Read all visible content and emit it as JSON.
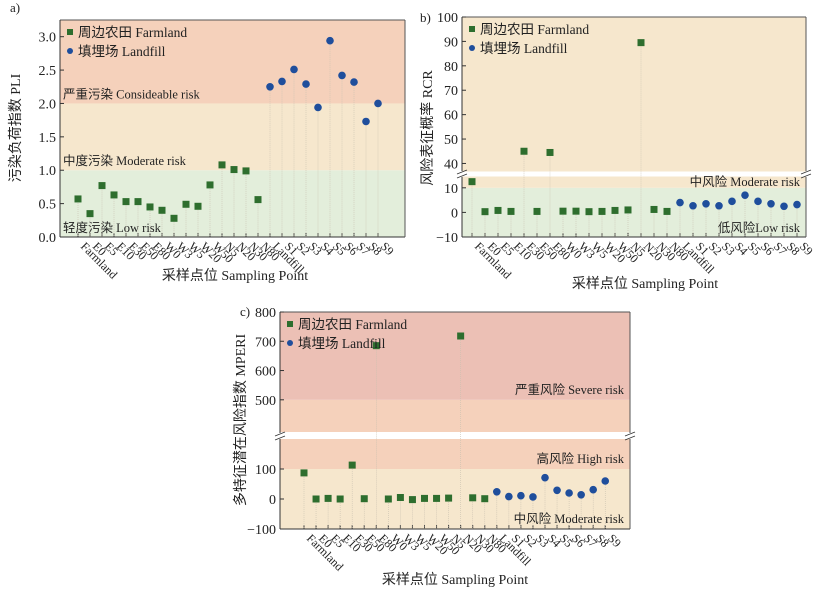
{
  "chart_data": [
    {
      "id": "a",
      "panel_label": "a)",
      "type": "scatter",
      "ylabel": "污染负荷指数 PLI",
      "xlabel": "采样点位 Sampling Point",
      "ylim": [
        0,
        3.25
      ],
      "yticks": [
        0.0,
        0.5,
        1.0,
        1.5,
        2.0,
        2.5,
        3.0
      ],
      "ytick_labels": [
        "0.0",
        "0.5",
        "1.0",
        "1.5",
        "2.0",
        "2.5",
        "3.0"
      ],
      "categories": [
        "Farmland",
        "E0",
        "E5",
        "E10",
        "E30",
        "E50",
        "E80",
        "W0",
        "W3",
        "W5",
        "W20",
        "W50",
        "N5",
        "N20",
        "N30",
        "N80",
        "Landfill",
        "S1",
        "S2",
        "S3",
        "S4",
        "S5",
        "S6",
        "S7",
        "S8",
        "S9"
      ],
      "bands": [
        {
          "from": 0,
          "to": 1.0,
          "label": "轻度污染 Low risk",
          "color": "#e3eedb"
        },
        {
          "from": 1.0,
          "to": 2.0,
          "label": "中度污染 Moderate risk",
          "color": "#f6e7cd"
        },
        {
          "from": 2.0,
          "to": 3.25,
          "label": "严重污染 Consideable risk",
          "color": "#f5d1bb"
        }
      ],
      "legend": [
        {
          "label": "周边农田 Farmland",
          "marker": "square",
          "color": "#2e6e2e"
        },
        {
          "label": "填埋场 Landfill",
          "marker": "circle",
          "color": "#1f4e9c"
        }
      ],
      "legend_position": "top-left",
      "series": [
        {
          "name": "周边农田 Farmland",
          "marker": "square",
          "color": "#2e6e2e",
          "start_index": 0,
          "values": [
            0.57,
            0.35,
            0.77,
            0.63,
            0.53,
            0.53,
            0.45,
            0.4,
            0.28,
            0.49,
            0.46,
            0.78,
            1.08,
            1.01,
            0.99,
            0.56
          ]
        },
        {
          "name": "填埋场 Landfill",
          "marker": "circle",
          "color": "#1f4e9c",
          "start_index": 16,
          "values": [
            2.25,
            2.33,
            2.51,
            2.29,
            1.94,
            2.94,
            2.42,
            2.32,
            1.73,
            2.0
          ]
        }
      ]
    },
    {
      "id": "b",
      "panel_label": "b)",
      "type": "scatter",
      "ylabel": "风险表征概率 RCR",
      "xlabel": "采样点位 Sampling Point",
      "broken_axis": true,
      "ylim_lower": [
        -10,
        14
      ],
      "ylim_upper": [
        36,
        100
      ],
      "yticks_lower": [
        -10,
        0,
        10
      ],
      "yticks_upper": [
        40,
        50,
        60,
        70,
        80,
        90,
        100
      ],
      "categories": [
        "Farmland",
        "E0",
        "E5",
        "E10",
        "E30",
        "E50",
        "E80",
        "W0",
        "W3",
        "W5",
        "W20",
        "W50",
        "N5",
        "N20",
        "N30",
        "N80",
        "Landfill",
        "S1",
        "S2",
        "S3",
        "S4",
        "S5",
        "S6",
        "S7",
        "S8",
        "S9"
      ],
      "bands": [
        {
          "from": -10,
          "to": 10,
          "label": "低风险Low risk",
          "color": "#e3eedb"
        },
        {
          "from": 10,
          "to": 100,
          "label": "中风险 Moderate risk",
          "color": "#f6e7cd"
        }
      ],
      "legend": [
        {
          "label": "周边农田 Farmland",
          "marker": "square",
          "color": "#2e6e2e"
        },
        {
          "label": "填埋场 Landfill",
          "marker": "circle",
          "color": "#1f4e9c"
        }
      ],
      "legend_position": "top-left",
      "series": [
        {
          "name": "周边农田 Farmland",
          "marker": "square",
          "color": "#2e6e2e",
          "start_index": 0,
          "values": [
            12.5,
            0.3,
            0.8,
            0.4,
            45.0,
            0.4,
            44.5,
            0.5,
            0.5,
            0.3,
            0.4,
            0.8,
            1.0,
            89.5,
            1.2,
            0.4
          ]
        },
        {
          "name": "填埋场 Landfill",
          "marker": "circle",
          "color": "#1f4e9c",
          "start_index": 16,
          "values": [
            4.0,
            2.7,
            3.5,
            2.7,
            4.5,
            7.0,
            4.5,
            3.5,
            2.5,
            3.2
          ]
        }
      ]
    },
    {
      "id": "c",
      "panel_label": "c)",
      "type": "scatter",
      "ylabel": "多特征潜在风险指数 MPERI",
      "xlabel": "采样点位 Sampling Point",
      "broken_axis": true,
      "ylim_lower": [
        -100,
        170
      ],
      "ylim_upper": [
        390,
        800
      ],
      "yticks_lower": [
        -100,
        0,
        100
      ],
      "yticks_upper": [
        500,
        600,
        700,
        800
      ],
      "categories": [
        "Farmland",
        "E0",
        "E5",
        "E10",
        "E30",
        "E50",
        "E80",
        "W0",
        "W3",
        "W5",
        "W20",
        "W50",
        "N5",
        "N20",
        "N30",
        "N80",
        "Landfill",
        "S1",
        "S2",
        "S3",
        "S4",
        "S5",
        "S6",
        "S7",
        "S8",
        "S9"
      ],
      "bands": [
        {
          "from": -100,
          "to": 100,
          "label": "中风险 Moderate risk",
          "color": "#f6e7cd"
        },
        {
          "from": 100,
          "to": 500,
          "label": "高风险 High risk",
          "color": "#f5d1bb"
        },
        {
          "from": 500,
          "to": 800,
          "label": "严重风险 Severe risk",
          "color": "#ecc0b5"
        }
      ],
      "legend": [
        {
          "label": "周边农田 Farmland",
          "marker": "square",
          "color": "#2e6e2e"
        },
        {
          "label": "填埋场 Landfill",
          "marker": "circle",
          "color": "#1f4e9c"
        }
      ],
      "legend_position": "top-left",
      "series": [
        {
          "name": "周边农田 Farmland",
          "marker": "square",
          "color": "#2e6e2e",
          "start_index": 0,
          "values": [
            87,
            0,
            2,
            0,
            113,
            1,
            685,
            0,
            5,
            -2,
            2,
            2,
            3,
            718,
            4,
            1
          ]
        },
        {
          "name": "填埋场 Landfill",
          "marker": "circle",
          "color": "#1f4e9c",
          "start_index": 16,
          "values": [
            24,
            8,
            11,
            7,
            71,
            29,
            20,
            14,
            31,
            60
          ]
        }
      ]
    }
  ]
}
